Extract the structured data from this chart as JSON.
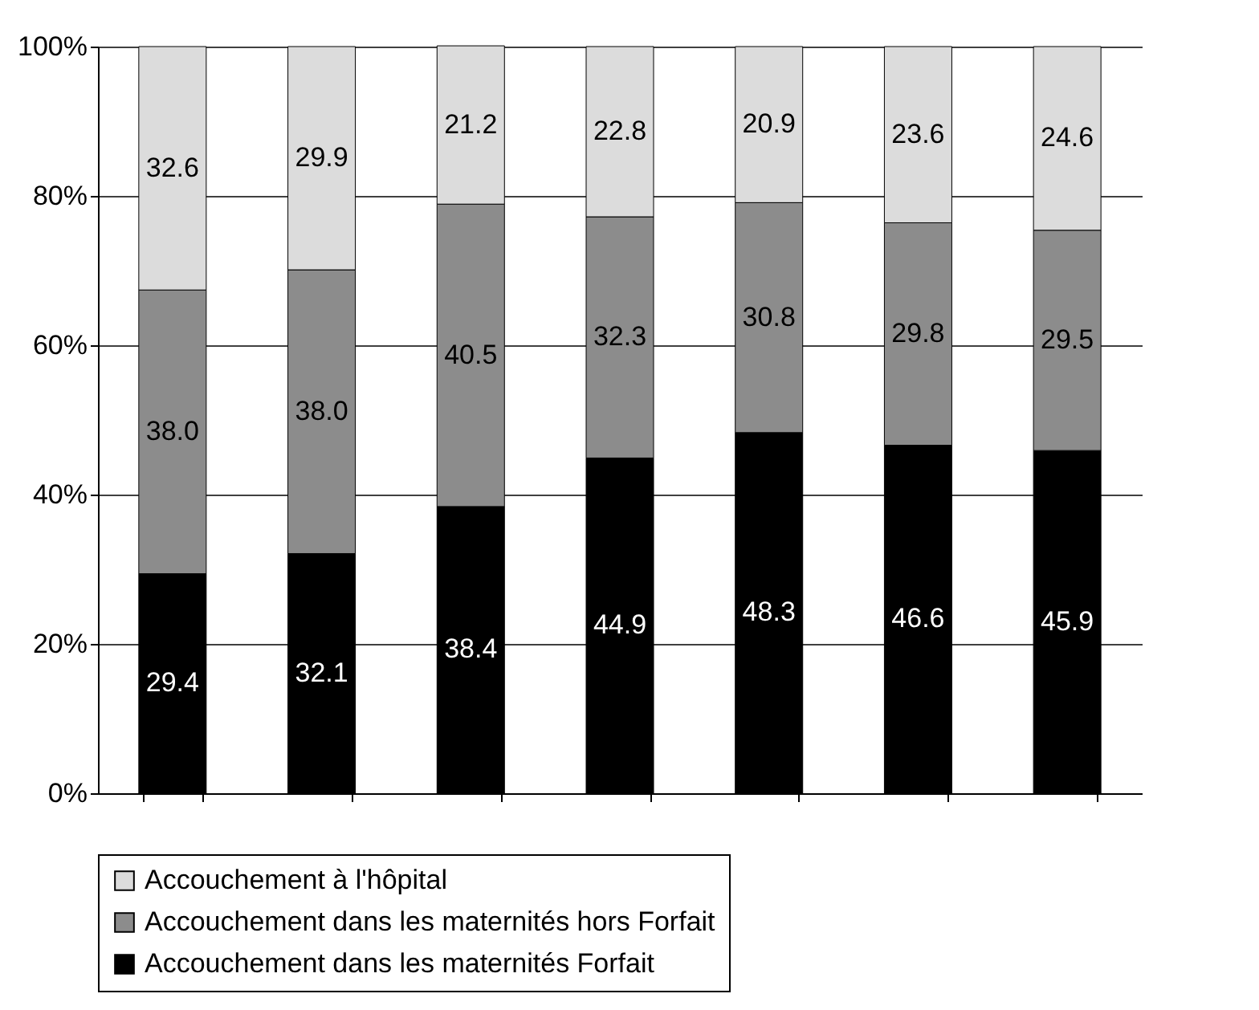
{
  "chart_data": {
    "type": "bar",
    "stacked": true,
    "categories": [
      null,
      null,
      null,
      null,
      null,
      null,
      null
    ],
    "series": [
      {
        "name": "Accouchement dans les maternités Forfait",
        "color": "#000000",
        "values": [
          29.4,
          32.1,
          38.4,
          44.9,
          48.3,
          46.6,
          45.9
        ],
        "value_labels": [
          "29.4",
          "32.1",
          "38.4",
          "44.9",
          "48.3",
          "46.6",
          "45.9"
        ]
      },
      {
        "name": "Accouchement dans les maternités hors Forfait",
        "color": "#8c8c8c",
        "values": [
          38,
          38,
          40.5,
          32.3,
          30.8,
          29.8,
          29.5
        ],
        "value_labels": [
          "38.0",
          "38.0",
          "40.5",
          "32.3",
          "30.8",
          "29.8",
          "29.5"
        ]
      },
      {
        "name": "Accouchement à l'hôpital",
        "color": "#dcdcdc",
        "values": [
          32.6,
          29.9,
          21.2,
          22.8,
          20.9,
          23.6,
          24.6
        ],
        "value_labels": [
          "32.6",
          "29.9",
          "21.2",
          "22.8",
          "20.9",
          "23.6",
          "24.6"
        ]
      }
    ],
    "ylim": [
      0,
      100
    ],
    "yticks": [
      {
        "value": 0,
        "label": "0%"
      },
      {
        "value": 20,
        "label": "20%"
      },
      {
        "value": 40,
        "label": "40%"
      },
      {
        "value": 60,
        "label": "60%"
      },
      {
        "value": 80,
        "label": "80%"
      },
      {
        "value": 100,
        "label": "100%"
      }
    ],
    "grid": "y",
    "legend": "bottom"
  }
}
